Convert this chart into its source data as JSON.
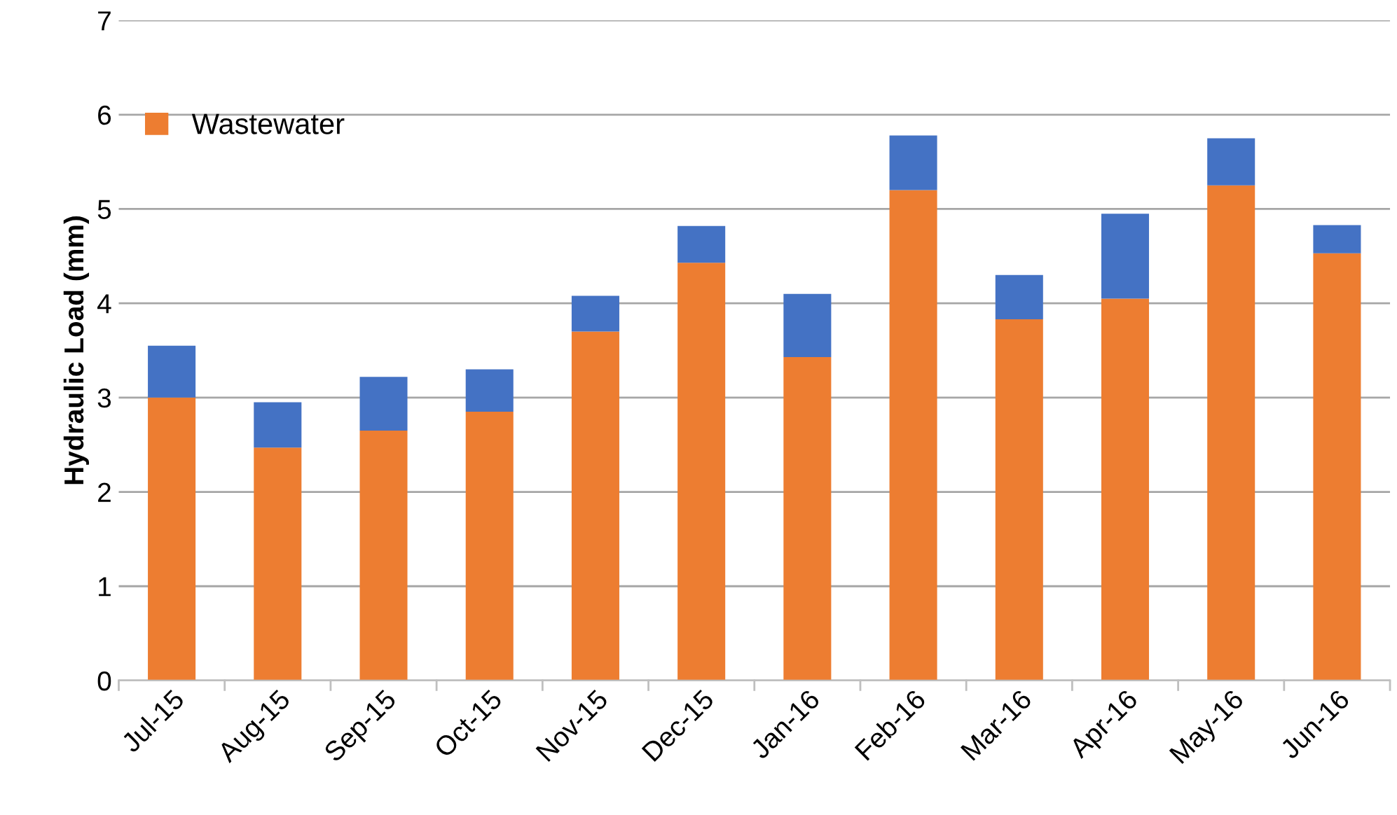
{
  "chart_data": {
    "type": "bar",
    "stacked": true,
    "ylabel": "Hydraulic Load (mm)",
    "categories": [
      "Jul-15",
      "Aug-15",
      "Sep-15",
      "Oct-15",
      "Nov-15",
      "Dec-15",
      "Jan-16",
      "Feb-16",
      "Mar-16",
      "Apr-16",
      "May-16",
      "Jun-16"
    ],
    "series": [
      {
        "name": "Wastewater",
        "color": "#ed7d31",
        "values": [
          3.0,
          2.47,
          2.65,
          2.85,
          3.7,
          4.43,
          3.43,
          5.2,
          3.83,
          4.05,
          5.25,
          4.53
        ]
      },
      {
        "color": "#4472c4",
        "values": [
          0.55,
          0.48,
          0.57,
          0.45,
          0.38,
          0.39,
          0.67,
          0.58,
          0.47,
          0.9,
          0.5,
          0.3
        ]
      }
    ],
    "ylim": [
      0,
      7
    ],
    "yticks": [
      0,
      1,
      2,
      3,
      4,
      5,
      6,
      7
    ],
    "grid": "y",
    "legend": "top left"
  }
}
